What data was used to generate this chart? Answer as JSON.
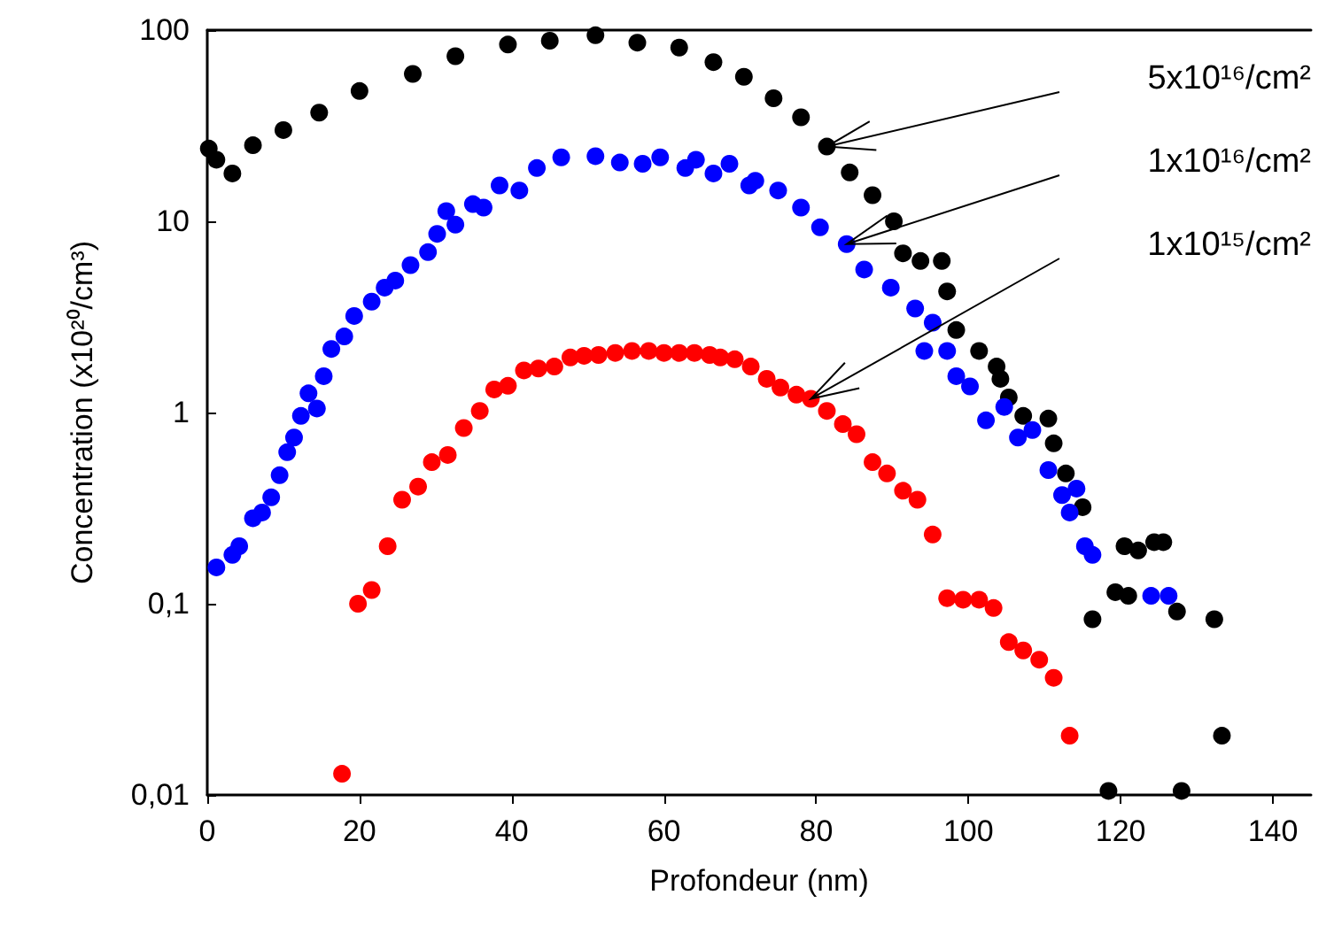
{
  "chart_data": {
    "type": "scatter",
    "xlabel": "Profondeur (nm)",
    "ylabel": "Concentration (x10²⁰/cm³)",
    "xlim": [
      0,
      145
    ],
    "xticks": [
      0,
      20,
      40,
      60,
      80,
      100,
      120,
      140
    ],
    "ylim": [
      0.01,
      100
    ],
    "yticks": [
      100,
      10,
      1,
      {
        "value": 0.1,
        "label": "0,1"
      },
      {
        "value": 0.01,
        "label": "0,01"
      }
    ],
    "log": "y",
    "grid": false,
    "marker": "circle",
    "annotations": [
      "5x10¹⁶/cm²",
      "1x10¹⁶/cm²",
      "1x10¹⁵/cm²"
    ],
    "series": [
      {
        "color": "#000000",
        "x": [
          0.2,
          1.2,
          3.3,
          6,
          10,
          14.7,
          20,
          27,
          32.6,
          39.5,
          45,
          51,
          56.5,
          62,
          66.5,
          70.5,
          74.4,
          78,
          81.4,
          84.4,
          87.4,
          90.2,
          91.4,
          93.7,
          96.5,
          97.2,
          98.4,
          101.4,
          103.7,
          104.2,
          105.3,
          107.2,
          110.5,
          111.2,
          112.8,
          115,
          116.3,
          118.4,
          119.3,
          120.5,
          121,
          122.3,
          124.4,
          125.6,
          127.4,
          128,
          132.3,
          133.3
        ],
        "values": [
          24,
          21,
          17.8,
          25,
          30,
          37,
          48,
          59,
          73,
          84,
          88,
          94,
          86,
          81,
          68,
          57,
          44,
          35,
          24.6,
          18,
          13.7,
          10,
          6.8,
          6.2,
          6.2,
          4.3,
          2.7,
          2.1,
          1.74,
          1.5,
          1.2,
          0.96,
          0.93,
          0.69,
          0.48,
          0.32,
          0.083,
          0.0105,
          0.115,
          0.2,
          0.11,
          0.19,
          0.21,
          0.21,
          0.091,
          0.0105,
          0.083,
          0.0204
        ]
      },
      {
        "color": "#0000ff",
        "x": [
          1.2,
          3.3,
          4.2,
          6,
          7.2,
          8.4,
          9.5,
          10.5,
          11.4,
          12.3,
          13.3,
          14.4,
          15.3,
          16.3,
          18,
          19.3,
          21.6,
          23.3,
          24.7,
          26.7,
          29,
          30.2,
          31.4,
          32.6,
          34.9,
          36.3,
          38.4,
          41,
          43.3,
          46.5,
          51,
          54.2,
          57.2,
          59.5,
          62.8,
          64.2,
          66.5,
          68.6,
          71.2,
          72,
          75,
          78,
          80.5,
          84,
          86.3,
          89.8,
          93,
          94.2,
          95.3,
          97.2,
          98.4,
          100.2,
          102.3,
          104.7,
          106.5,
          108.4,
          110.5,
          112.3,
          113.3,
          114.2,
          115.3,
          116.3,
          124,
          126.3
        ],
        "values": [
          0.155,
          0.18,
          0.2,
          0.28,
          0.3,
          0.36,
          0.47,
          0.62,
          0.74,
          0.96,
          1.26,
          1.05,
          1.55,
          2.15,
          2.5,
          3.2,
          3.8,
          4.5,
          4.9,
          5.9,
          6.9,
          8.6,
          11.3,
          9.6,
          12.3,
          11.8,
          15.4,
          14.5,
          19,
          21.6,
          21.9,
          20.3,
          20,
          21.6,
          19,
          21,
          17.8,
          20,
          15.4,
          16.3,
          14.5,
          11.8,
          9.3,
          7.6,
          5.6,
          4.5,
          3.5,
          2.1,
          2.95,
          2.1,
          1.55,
          1.37,
          0.91,
          1.07,
          0.74,
          0.81,
          0.5,
          0.37,
          0.3,
          0.4,
          0.2,
          0.18,
          0.11,
          0.11
        ]
      },
      {
        "color": "#ff0000",
        "x": [
          17.7,
          19.8,
          21.6,
          23.7,
          25.6,
          27.7,
          29.5,
          31.6,
          33.7,
          35.8,
          37.7,
          39.5,
          41.6,
          43.5,
          45.6,
          47.7,
          49.5,
          51.4,
          53.6,
          55.8,
          58,
          60,
          62,
          64,
          66,
          67.4,
          69.3,
          71.4,
          73.5,
          75.3,
          77.4,
          79.3,
          81.4,
          83.5,
          85.3,
          87.4,
          89.3,
          91.4,
          93.3,
          95.3,
          97.2,
          99.3,
          101.4,
          103.3,
          105.3,
          107.2,
          109.3,
          111.2,
          113.3
        ],
        "values": [
          0.0129,
          0.1,
          0.118,
          0.2,
          0.35,
          0.41,
          0.55,
          0.6,
          0.83,
          1.02,
          1.32,
          1.38,
          1.66,
          1.7,
          1.74,
          1.94,
          1.98,
          2.0,
          2.05,
          2.1,
          2.1,
          2.05,
          2.05,
          2.05,
          2.0,
          1.94,
          1.9,
          1.74,
          1.5,
          1.35,
          1.24,
          1.18,
          1.02,
          0.87,
          0.77,
          0.55,
          0.48,
          0.39,
          0.35,
          0.23,
          0.107,
          0.105,
          0.105,
          0.095,
          0.063,
          0.057,
          0.051,
          0.041,
          0.0204
        ]
      }
    ]
  }
}
